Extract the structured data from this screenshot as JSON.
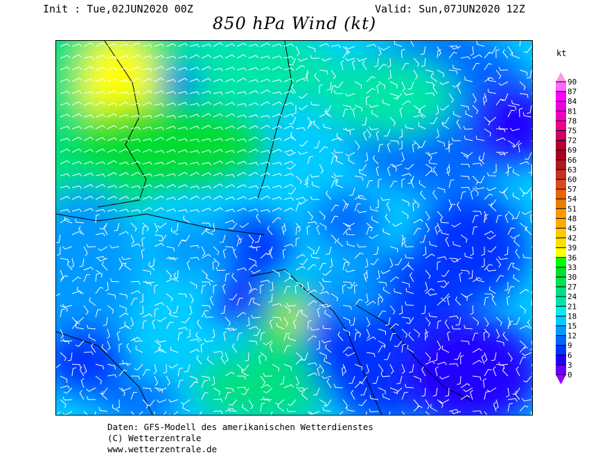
{
  "header": {
    "init": "Init : Tue,02JUN2020 00Z",
    "valid": "Valid: Sun,07JUN2020 12Z",
    "title": "850 hPa Wind (kt)"
  },
  "map": {
    "field": "850 hPa wind speed",
    "region": "Central Europe"
  },
  "colorbar": {
    "unit": "kt",
    "labels": [
      "90",
      "87",
      "84",
      "81",
      "78",
      "75",
      "72",
      "69",
      "66",
      "63",
      "60",
      "57",
      "54",
      "51",
      "48",
      "45",
      "42",
      "39",
      "36",
      "33",
      "30",
      "27",
      "24",
      "21",
      "18",
      "15",
      "12",
      "9",
      "6",
      "3",
      "0"
    ],
    "colors_top_to_bottom": [
      "#ff66ff",
      "#ff00ff",
      "#f000e0",
      "#f000c0",
      "#f00090",
      "#cc0066",
      "#b30033",
      "#a80022",
      "#b01a1a",
      "#c83020",
      "#dd4a22",
      "#e66600",
      "#e67e00",
      "#ff9900",
      "#ffaa00",
      "#ffc800",
      "#ffdd00",
      "#ffff00",
      "#00ff00",
      "#00dd33",
      "#00e050",
      "#00e080",
      "#00e5a8",
      "#00eeee",
      "#00ccff",
      "#0099ff",
      "#0066ff",
      "#0033ff",
      "#2200ff",
      "#6600ff"
    ],
    "top_tip_color": "#ff99ee",
    "bottom_tip_color": "#9900ff"
  },
  "footer": {
    "line1": "Daten: GFS-Modell des amerikanischen Wetterdienstes",
    "line2": "(C) Wetterzentrale",
    "line3": "www.wetterzentrale.de"
  }
}
